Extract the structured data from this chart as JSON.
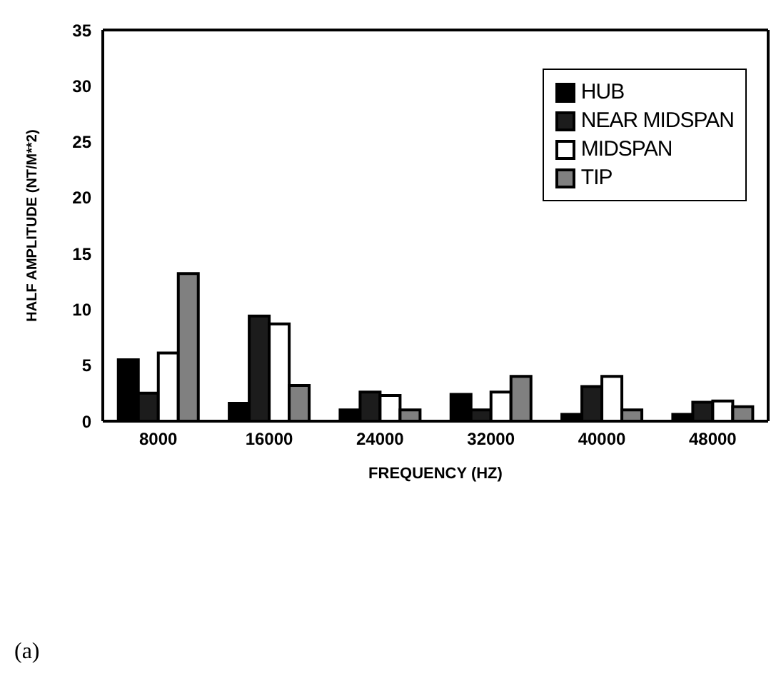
{
  "chart_data": {
    "type": "bar",
    "xlabel": "FREQUENCY (HZ)",
    "ylabel": "HALF AMPLITUDE (NT/M**2)",
    "categories": [
      "8000",
      "16000",
      "24000",
      "32000",
      "40000",
      "48000"
    ],
    "series": [
      {
        "name": "HUB",
        "color": "#000000",
        "values": [
          5.5,
          1.6,
          1.0,
          2.4,
          0.6,
          0.6
        ]
      },
      {
        "name": "NEAR MIDSPAN",
        "color": "#1c1c1c",
        "values": [
          2.5,
          9.4,
          2.6,
          1.0,
          3.1,
          1.7
        ]
      },
      {
        "name": "MIDSPAN",
        "color": "#ffffff",
        "values": [
          6.1,
          8.7,
          2.3,
          2.6,
          4.0,
          1.8
        ]
      },
      {
        "name": "TIP",
        "color": "#808080",
        "values": [
          13.2,
          3.2,
          1.0,
          4.0,
          1.0,
          1.3
        ]
      }
    ],
    "ylim": [
      0,
      35
    ],
    "yticks": [
      0,
      5,
      10,
      15,
      20,
      25,
      30,
      35
    ],
    "grid": false,
    "legend": "top right",
    "annotations": [
      "(a)"
    ]
  }
}
